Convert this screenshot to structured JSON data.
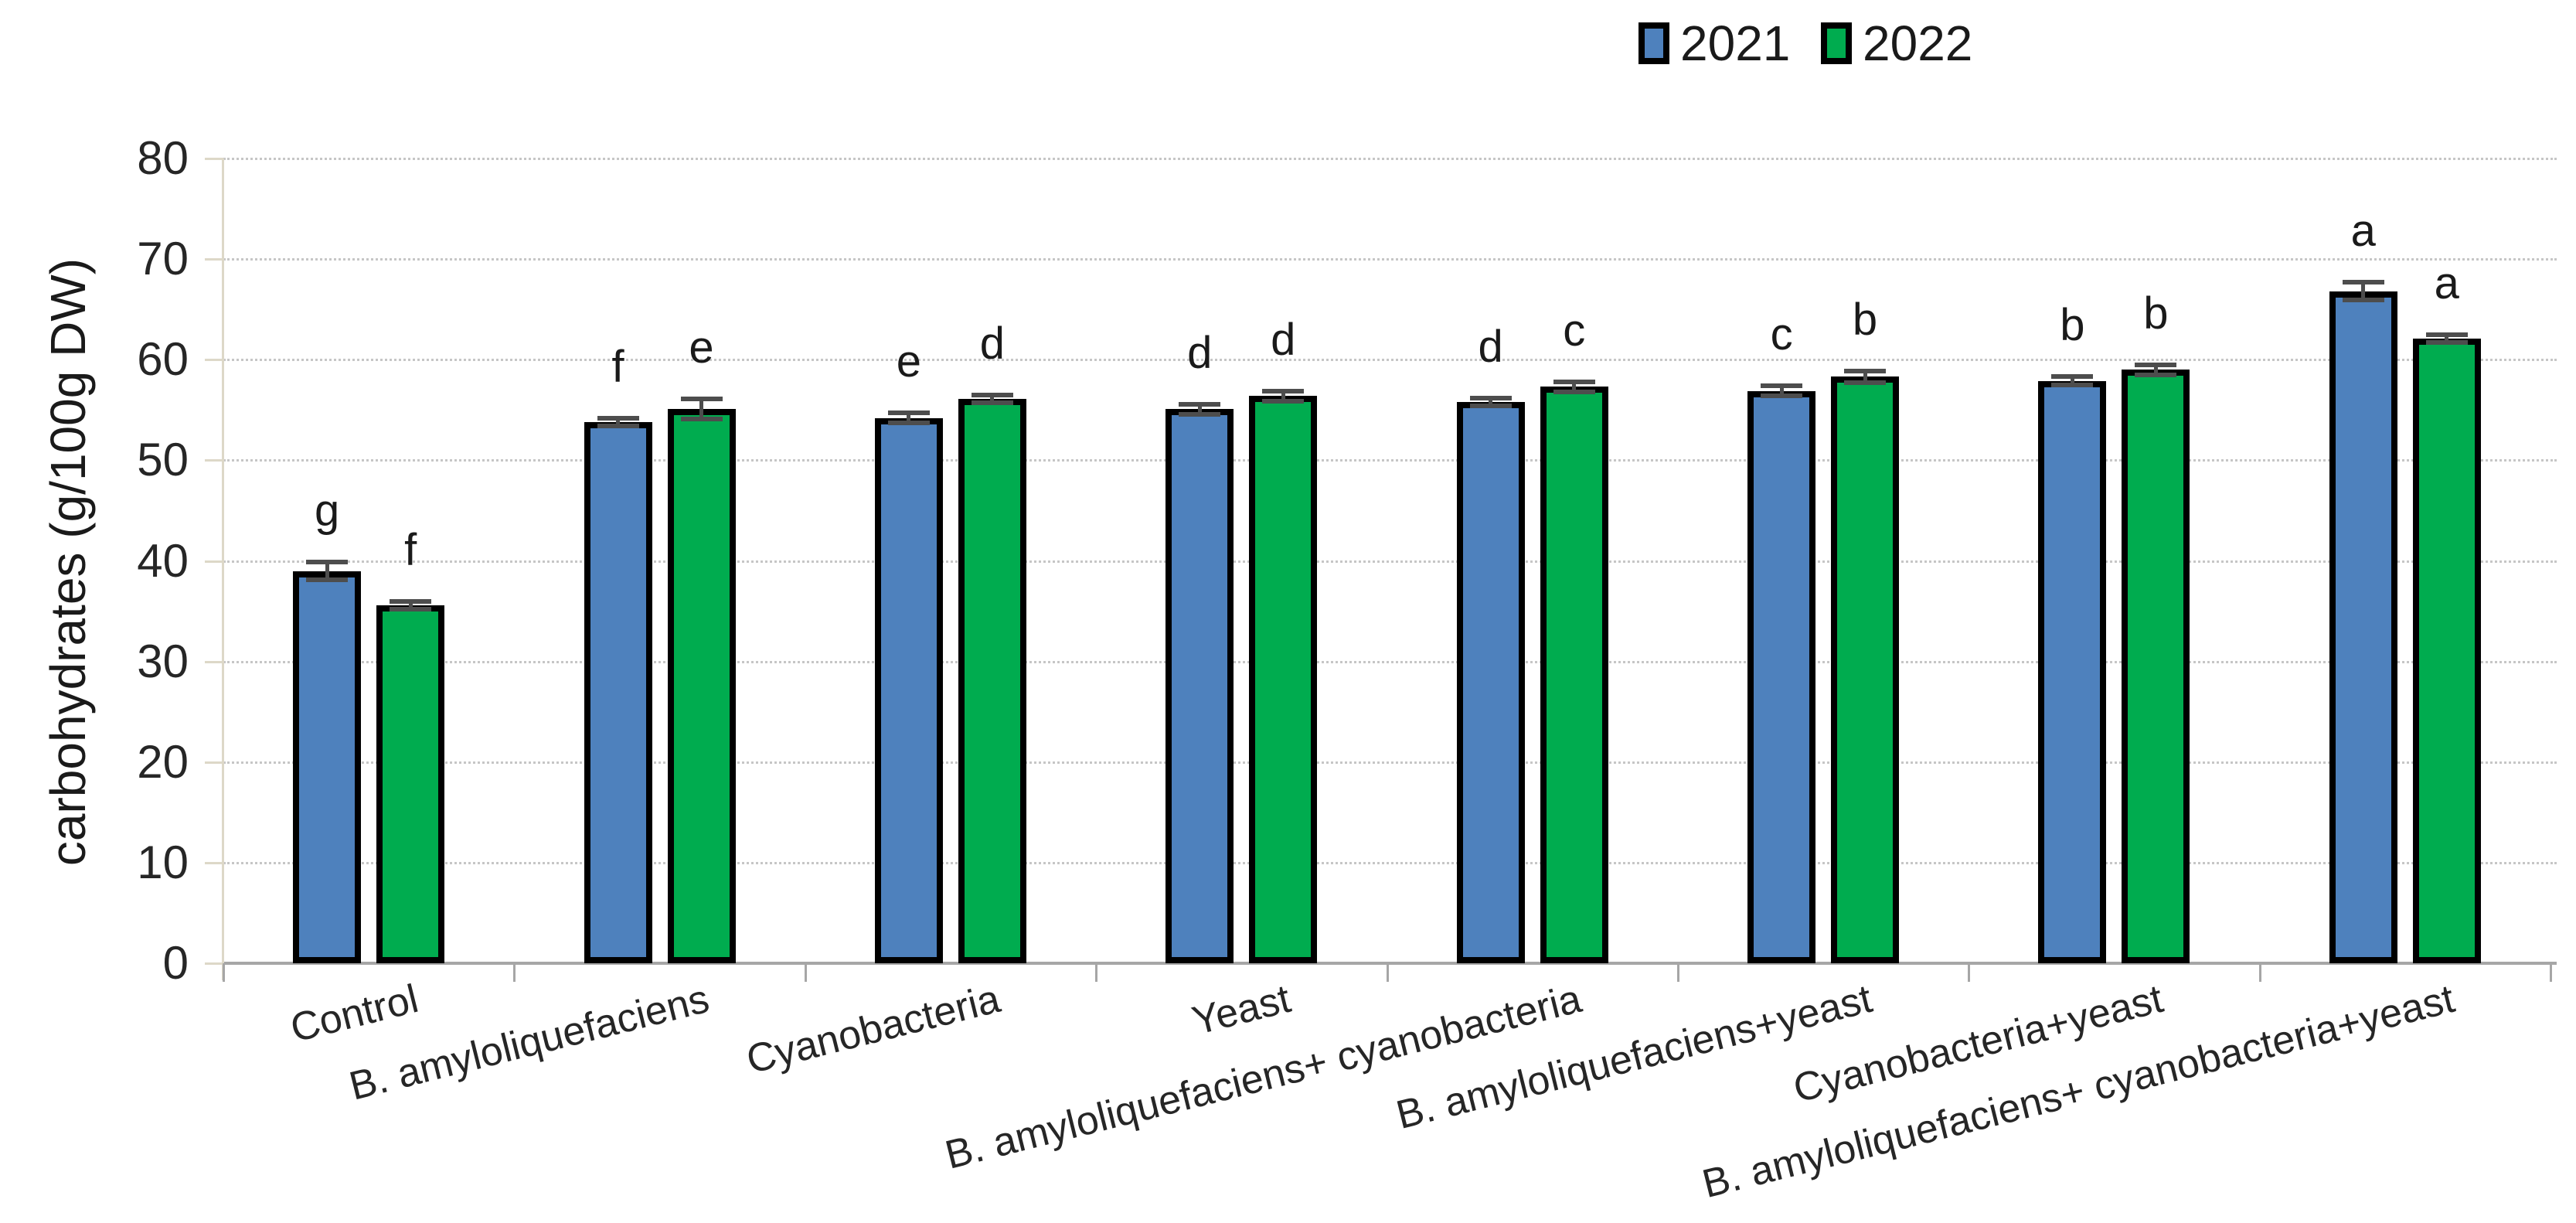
{
  "chart_data": {
    "type": "bar",
    "title": "",
    "xlabel": "",
    "ylabel": "carbohydrates (g/100g DW)",
    "ylim": [
      0,
      80
    ],
    "ytick_step": 10,
    "yticks": [
      0,
      10,
      20,
      30,
      40,
      50,
      60,
      70,
      80
    ],
    "grid": true,
    "legend_position": "top-right",
    "categories": [
      "Control",
      "B. amyloliquefaciens",
      "Cyanobacteria",
      "Yeast",
      "B. amyloliquefaciens+ cyanobacteria",
      "B. amyloliquefaciens+yeast",
      "Cyanobacteria+yeast",
      "B. amyloliquefaciens+ cyanobacteria+yeast"
    ],
    "series": [
      {
        "name": "2021",
        "color": "#4E81BD",
        "values": [
          39.0,
          53.8,
          54.2,
          55.1,
          55.8,
          56.9,
          57.9,
          66.8
        ],
        "errors": [
          0.9,
          0.4,
          0.5,
          0.5,
          0.4,
          0.5,
          0.4,
          0.9
        ],
        "sig_letters": [
          "g",
          "f",
          "e",
          "d",
          "d",
          "c",
          "b",
          "a"
        ]
      },
      {
        "name": "2022",
        "color": "#00AC4F",
        "values": [
          35.6,
          55.1,
          56.1,
          56.4,
          57.3,
          58.3,
          59.0,
          62.1
        ],
        "errors": [
          0.3,
          1.0,
          0.4,
          0.5,
          0.5,
          0.6,
          0.5,
          0.4
        ],
        "sig_letters": [
          "f",
          "e",
          "d",
          "d",
          "c",
          "b",
          "b",
          "a"
        ]
      }
    ]
  },
  "colors": {
    "bar_border": "#000000",
    "error_bar": "#4D4D4D",
    "gridline": "#C6C6C6",
    "baseline": "#A6A6A6",
    "y_axis_line": "#DDD8C8",
    "text": "#262626"
  }
}
